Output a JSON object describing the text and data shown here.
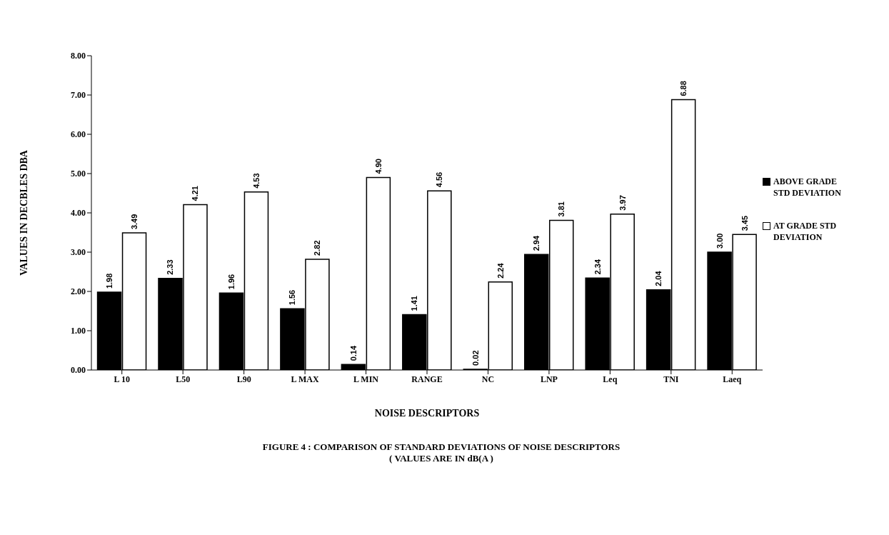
{
  "chart_data": {
    "type": "bar",
    "title": "FIGURE   4 : COMPARISON OF STANDARD DEVIATIONS OF NOISE DESCRIPTORS",
    "subtitle": "( VALUES ARE IN dB(A )",
    "xlabel": "NOISE DESCRIPTORS",
    "ylabel": "VALUES IN DECBLES DBA",
    "categories": [
      "L 10",
      "L50",
      "L90",
      "L MAX",
      "L MIN",
      "RANGE",
      "NC",
      "LNP",
      "Leq",
      "TNI",
      "Laeq"
    ],
    "series": [
      {
        "name": "ABOVE GRADE STD DEVIATION",
        "color": "#000000",
        "values": [
          1.98,
          2.33,
          1.96,
          1.56,
          0.14,
          1.41,
          0.02,
          2.94,
          2.34,
          2.04,
          3.0
        ],
        "value_labels": [
          "1.98",
          "2.33",
          "1.96",
          "1.56",
          "0.14",
          "1.41",
          "0.02",
          "2.94",
          "2.34",
          "2.04",
          "3.00"
        ]
      },
      {
        "name": "AT GRADE STD DEVIATION",
        "color": "#ffffff",
        "values": [
          3.49,
          4.21,
          4.53,
          2.82,
          4.9,
          4.56,
          2.24,
          3.81,
          3.97,
          6.88,
          3.45
        ],
        "value_labels": [
          "3.49",
          "4.21",
          "4.53",
          "2.82",
          "4.90",
          "4.56",
          "2.24",
          "3.81",
          "3.97",
          "6.88",
          "3.45"
        ]
      }
    ],
    "ylim": [
      0,
      8
    ],
    "yticks": [
      {
        "value": 0,
        "label": "0.00"
      },
      {
        "value": 1,
        "label": "1.00"
      },
      {
        "value": 2,
        "label": "2.00"
      },
      {
        "value": 3,
        "label": "3.00"
      },
      {
        "value": 4,
        "label": "4.00"
      },
      {
        "value": 5,
        "label": "5.00"
      },
      {
        "value": 6,
        "label": "6.00"
      },
      {
        "value": 7,
        "label": "7.00"
      },
      {
        "value": 8,
        "label": "8.00"
      }
    ],
    "grid": false,
    "legend": "right"
  }
}
